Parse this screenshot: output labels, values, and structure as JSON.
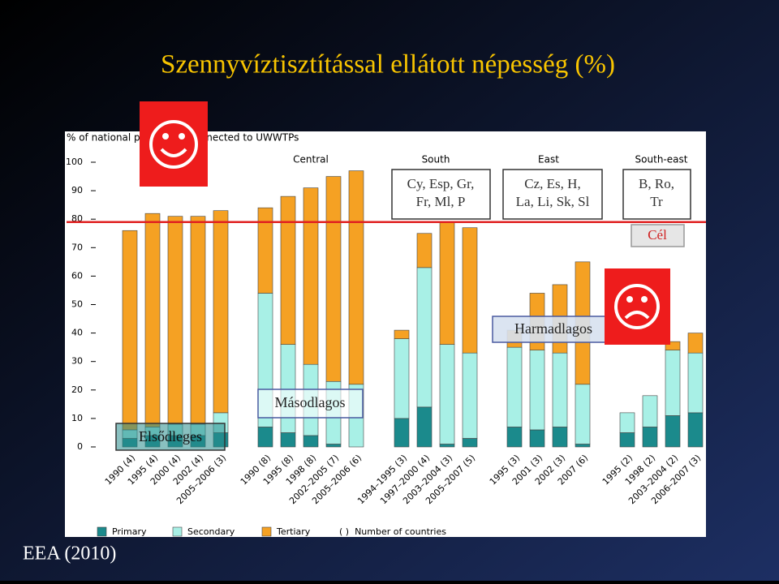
{
  "slide": {
    "title": "Szennyvíztisztítással ellátott népesség (%)",
    "source": "EEA (2010)"
  },
  "chart_data": {
    "type": "bar",
    "stacked": true,
    "y_label": "% of national population connected to UWWTPs",
    "groups": [
      {
        "categories": [
          "1990 (4)",
          "1995 (4)",
          "2000 (4)",
          "2002 (4)",
          "2005–2006 (3)"
        ]
      },
      {
        "name": "Central",
        "categories": [
          "1990 (8)",
          "1995 (8)",
          "1998 (8)",
          "2002–2005 (7)",
          "2005–2006 (6)"
        ]
      },
      {
        "name": "South",
        "categories": [
          "1994–1995 (3)",
          "1997–2000 (4)",
          "2003–2004 (3)",
          "2005–2007 (5)"
        ]
      },
      {
        "name": "East",
        "categories": [
          "1995 (3)",
          "2001 (3)",
          "2002 (3)",
          "2007 (6)"
        ]
      },
      {
        "name": "South-east",
        "categories": [
          "1995 (2)",
          "1998 (2)",
          "2003–2004 (2)",
          "2006–2007 (3)"
        ]
      }
    ],
    "series": [
      {
        "name": "Primary",
        "color": "#1b8a8c",
        "values": [
          3,
          4,
          4,
          4,
          5,
          7,
          5,
          4,
          1,
          0,
          10,
          14,
          1,
          3,
          7,
          6,
          7,
          1,
          5,
          7,
          11,
          12
        ]
      },
      {
        "name": "Secondary",
        "color": "#a8f0e6",
        "values": [
          3,
          3,
          4,
          4,
          7,
          47,
          31,
          25,
          22,
          22,
          28,
          49,
          35,
          30,
          28,
          28,
          26,
          21,
          7,
          11,
          23,
          21
        ]
      },
      {
        "name": "Tertiary",
        "color": "#f5a123",
        "values": [
          70,
          75,
          73,
          73,
          71,
          30,
          52,
          62,
          72,
          75,
          3,
          12,
          43,
          44,
          6,
          20,
          24,
          43,
          0,
          0,
          3,
          7
        ]
      }
    ],
    "legend_note": "( )  Number of countries",
    "ylim": [
      0,
      100
    ],
    "yticks": [
      0,
      10,
      20,
      30,
      40,
      50,
      60,
      70,
      80,
      90,
      100
    ],
    "target": 79,
    "target_color": "#e02020",
    "annotations": {
      "south": [
        "Cy, Esp, Gr,",
        "Fr, Ml, P"
      ],
      "east": [
        "Cz, Es, H,",
        "La, Li, Sk, Sl"
      ],
      "southeast": [
        "B, Ro,",
        "Tr"
      ],
      "target": "Cél",
      "tertiary": "Harmadlagos",
      "secondary": "Másodlagos",
      "primary": "Elsődleges"
    }
  }
}
